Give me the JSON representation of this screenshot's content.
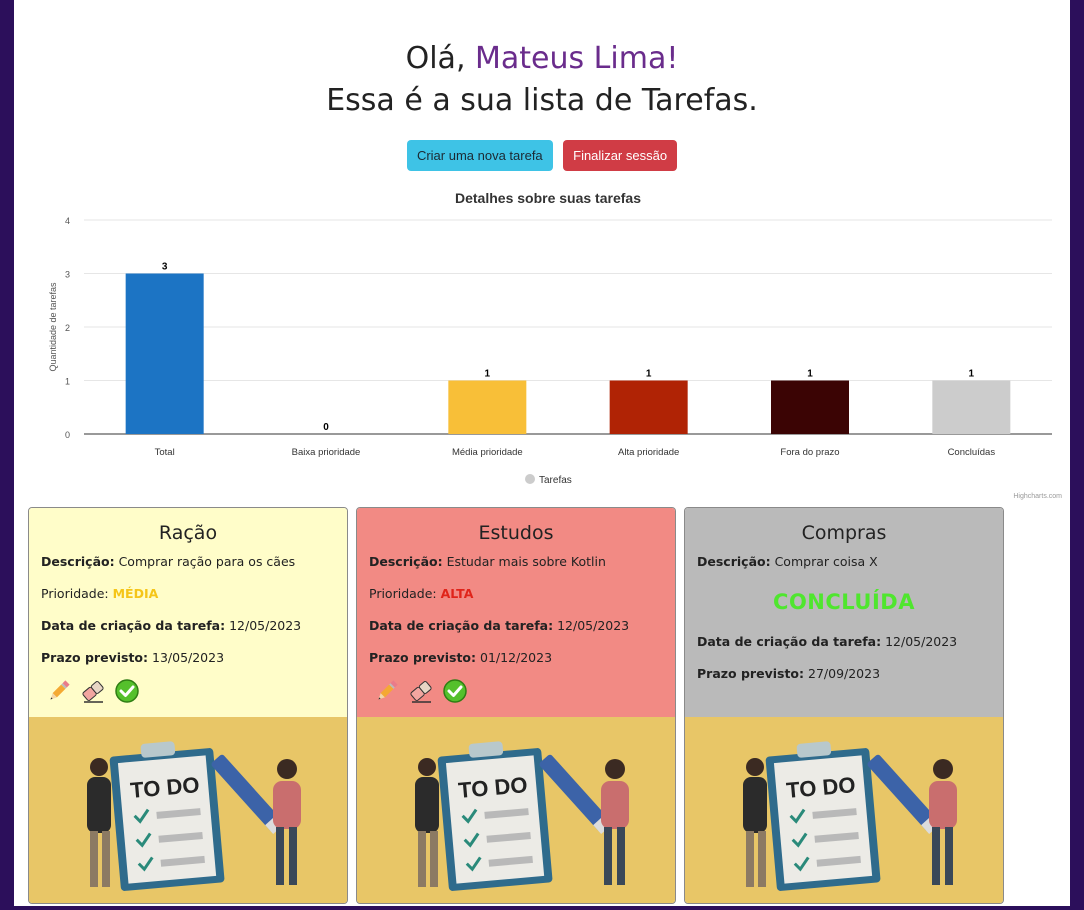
{
  "header": {
    "greeting_prefix": "Olá, ",
    "user_name": "Mateus Lima!",
    "subtitle": "Essa é a sua lista de Tarefas."
  },
  "actions": {
    "new_task": "Criar uma nova tarefa",
    "logout": "Finalizar sessão"
  },
  "chart_data": {
    "type": "bar",
    "title": "Detalhes sobre suas tarefas",
    "ylabel": "Quantidade de tarefas",
    "xlabel": "",
    "categories": [
      "Total",
      "Baixa prioridade",
      "Média prioridade",
      "Alta prioridade",
      "Fora do prazo",
      "Concluídas"
    ],
    "series": [
      {
        "name": "Tarefas",
        "values": [
          3,
          0,
          1,
          1,
          1,
          1
        ]
      }
    ],
    "colors": [
      "#1c74c4",
      "#2a9d8f",
      "#f8bf38",
      "#b02305",
      "#3b0404",
      "#cccccc"
    ],
    "ylim": [
      0,
      4
    ],
    "yticks": [
      "0",
      "1",
      "2",
      "3",
      "4"
    ],
    "grid": true,
    "legend": "bottom-center",
    "credits": "Highcharts.com"
  },
  "tasks": [
    {
      "title": "Ração",
      "desc_label": "Descrição:",
      "desc": "Comprar ração para os cães",
      "prio_label": "Prioridade:",
      "prio": "MÉDIA",
      "created_label": "Data de criação da tarefa:",
      "created": "12/05/2023",
      "due_label": "Prazo previsto:",
      "due": "13/05/2023",
      "bg": "#fffdc9"
    },
    {
      "title": "Estudos",
      "desc_label": "Descrição:",
      "desc": "Estudar mais sobre Kotlin",
      "prio_label": "Prioridade:",
      "prio": "ALTA",
      "created_label": "Data de criação da tarefa:",
      "created": "12/05/2023",
      "due_label": "Prazo previsto:",
      "due": "01/12/2023",
      "bg": "#f28a84"
    },
    {
      "title": "Compras",
      "desc_label": "Descrição:",
      "desc": "Comprar coisa X",
      "status": "CONCLUÍDA",
      "created_label": "Data de criação da tarefa:",
      "created": "12/05/2023",
      "due_label": "Prazo previsto:",
      "due": "27/09/2023",
      "bg": "#bababa"
    }
  ],
  "illustration": {
    "text": "TO DO"
  }
}
